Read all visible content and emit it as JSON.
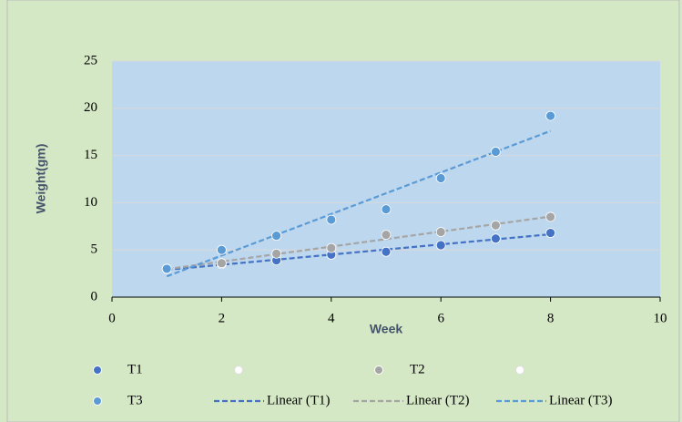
{
  "chart_data": {
    "type": "scatter",
    "x_label": "Week",
    "y_label": "Weight(gm)",
    "x": [
      1,
      2,
      3,
      4,
      5,
      6,
      7,
      8
    ],
    "series": [
      {
        "name": "T1",
        "color": "#4472c4",
        "values": [
          3.0,
          3.5,
          3.9,
          4.5,
          4.8,
          5.5,
          6.2,
          6.8
        ],
        "trendline_name": "Linear (T1)"
      },
      {
        "name": "T2",
        "color": "#a5a5a5",
        "values": [
          3.0,
          3.6,
          4.6,
          5.2,
          6.6,
          6.9,
          7.6,
          8.5
        ],
        "trendline_name": "Linear (T2)"
      },
      {
        "name": "T3",
        "color": "#5b9bd5",
        "values": [
          3.0,
          5.0,
          6.5,
          8.2,
          9.3,
          12.6,
          15.4,
          19.2
        ],
        "trendline_name": "Linear (T3)"
      }
    ],
    "xlim": [
      0,
      10
    ],
    "xticks": [
      0,
      2,
      4,
      6,
      8,
      10
    ],
    "ylim": [
      0,
      25
    ],
    "yticks": [
      0,
      5,
      10,
      15,
      20,
      25
    ],
    "grid": true,
    "legend": "bottom"
  }
}
